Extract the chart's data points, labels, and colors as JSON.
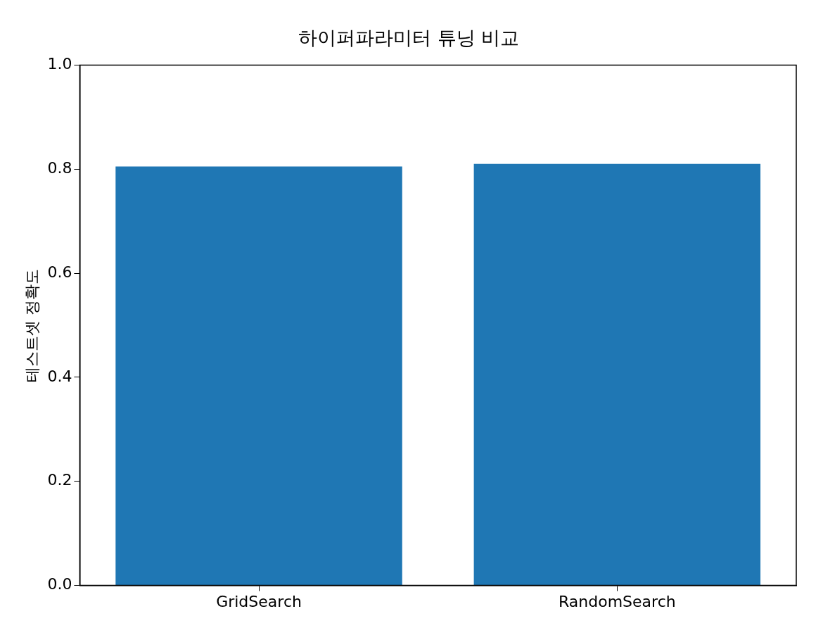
{
  "chart_data": {
    "type": "bar",
    "title": "하이퍼파라미터 튜닝 비교",
    "ylabel": "테스트셋 정확도",
    "categories": [
      "GridSearch",
      "RandomSearch"
    ],
    "values": [
      0.805,
      0.81
    ],
    "color": "#1f77b4",
    "ylim": [
      0,
      1
    ],
    "yticks": [
      {
        "value": 0,
        "label": "0.0"
      },
      0.2,
      0.4,
      0.6,
      0.8,
      {
        "value": 1,
        "label": "1.0"
      }
    ],
    "grid": false,
    "legend": false
  }
}
